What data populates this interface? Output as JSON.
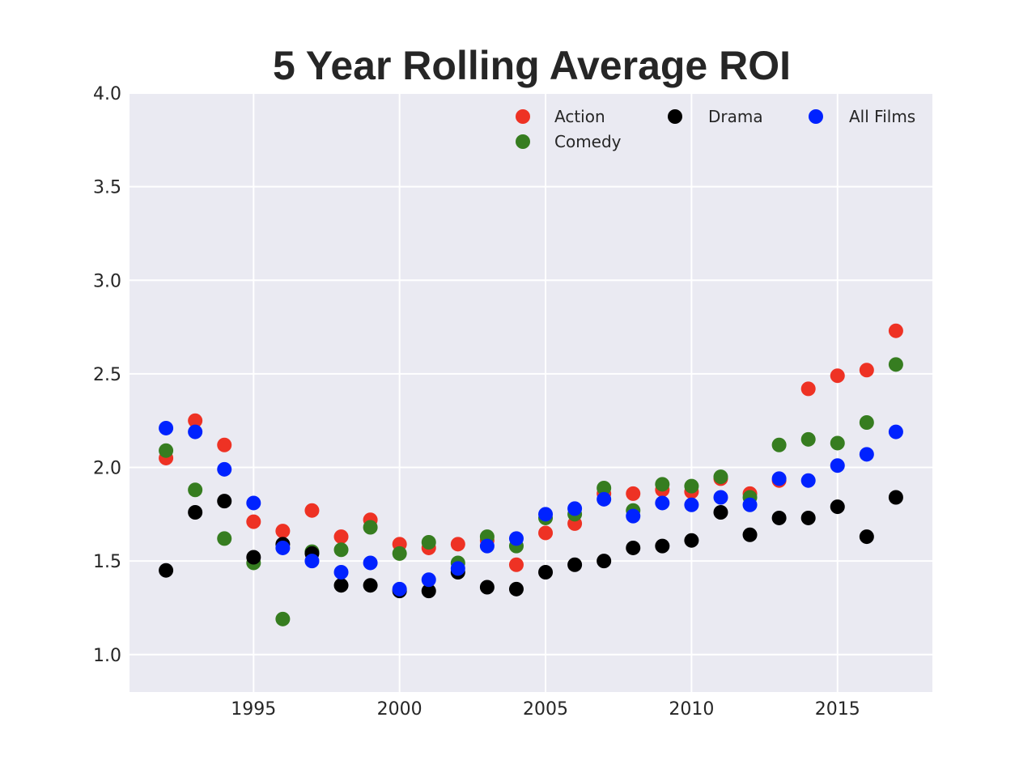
{
  "chart_data": {
    "type": "scatter",
    "title": "5 Year Rolling Average ROI",
    "xlabel": "",
    "ylabel": "",
    "xlim": [
      1990.75,
      2018.25
    ],
    "ylim": [
      0.8,
      4.0
    ],
    "xticks": [
      1995,
      2000,
      2005,
      2010,
      2015
    ],
    "yticks": [
      1.0,
      1.5,
      2.0,
      2.5,
      3.0,
      3.5,
      4.0
    ],
    "ytick_labels": [
      "1.0",
      "1.5",
      "2.0",
      "2.5",
      "3.0",
      "3.5",
      "4.0"
    ],
    "grid": true,
    "legend": {
      "placement": "top-right",
      "columns": 3
    },
    "x": [
      1992,
      1993,
      1994,
      1995,
      1996,
      1997,
      1998,
      1999,
      2000,
      2001,
      2002,
      2003,
      2004,
      2005,
      2006,
      2007,
      2008,
      2009,
      2010,
      2011,
      2012,
      2013,
      2014,
      2015,
      2016,
      2017
    ],
    "series": [
      {
        "name": "Action",
        "color": "#ee3224",
        "values": [
          2.05,
          2.25,
          2.12,
          1.71,
          1.66,
          1.77,
          1.63,
          1.72,
          1.59,
          1.57,
          1.59,
          1.61,
          1.48,
          1.65,
          1.7,
          1.86,
          1.86,
          1.88,
          1.87,
          1.94,
          1.86,
          1.93,
          2.42,
          2.49,
          2.52,
          2.73
        ]
      },
      {
        "name": "Comedy",
        "color": "#367d20",
        "values": [
          2.09,
          1.88,
          1.62,
          1.49,
          1.19,
          1.55,
          1.56,
          1.68,
          1.54,
          1.6,
          1.49,
          1.63,
          1.58,
          1.73,
          1.75,
          1.89,
          1.77,
          1.91,
          1.9,
          1.95,
          1.84,
          2.12,
          2.15,
          2.13,
          2.24,
          2.55
        ]
      },
      {
        "name": "Drama",
        "color": "#000000",
        "values": [
          1.45,
          1.76,
          1.82,
          1.52,
          1.59,
          1.54,
          1.37,
          1.37,
          1.34,
          1.34,
          1.44,
          1.36,
          1.35,
          1.44,
          1.48,
          1.5,
          1.57,
          1.58,
          1.61,
          1.76,
          1.64,
          1.73,
          1.73,
          1.79,
          1.63,
          1.84
        ]
      },
      {
        "name": "All Films",
        "color": "#0022ff",
        "values": [
          2.21,
          2.19,
          1.99,
          1.81,
          1.57,
          1.5,
          1.44,
          1.49,
          1.35,
          1.4,
          1.46,
          1.58,
          1.62,
          1.75,
          1.78,
          1.83,
          1.74,
          1.81,
          1.8,
          1.84,
          1.8,
          1.94,
          1.93,
          2.01,
          2.07,
          2.19
        ]
      }
    ]
  }
}
